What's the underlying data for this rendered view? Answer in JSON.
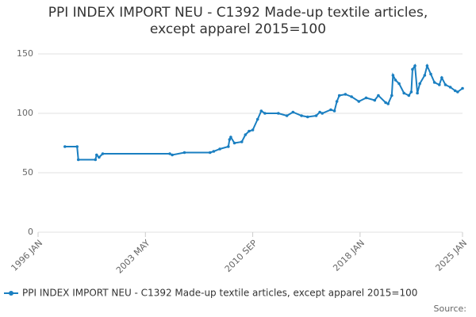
{
  "chart_data": {
    "type": "line",
    "title": "PPI INDEX IMPORT NEU - C1392 Made-up textile articles, except apparel 2015=100",
    "source": "Source:",
    "x": [
      "1997 NOV",
      "1998 SEP",
      "1998 OCT",
      "1999 DEC",
      "2000 JAN",
      "2000 MAR",
      "2000 JUN",
      "2005 JAN",
      "2005 MAR",
      "2006 JAN",
      "2007 OCT",
      "2008 JAN",
      "2008 JUN",
      "2009 JAN",
      "2009 FEB",
      "2009 MAR",
      "2009 JUN",
      "2009 DEC",
      "2010 MAR",
      "2010 JUN",
      "2010 SEP",
      "2011 JAN",
      "2011 APR",
      "2011 JUL",
      "2012 JUN",
      "2013 JAN",
      "2013 JUN",
      "2014 JAN",
      "2014 JUN",
      "2015 JAN",
      "2015 APR",
      "2015 JUN",
      "2016 JAN",
      "2016 APR",
      "2016 JUN",
      "2016 AUG",
      "2017 JAN",
      "2017 JUN",
      "2017 DEC",
      "2018 JUN",
      "2019 JAN",
      "2019 APR",
      "2019 OCT",
      "2019 DEC",
      "2020 MAR",
      "2020 APR",
      "2020 JUN",
      "2020 SEP",
      "2021 JAN",
      "2021 MAY",
      "2021 JUL",
      "2021 AUG",
      "2021 OCT",
      "2021 DEC",
      "2022 FEB",
      "2022 JUN",
      "2022 AUG",
      "2022 NOV",
      "2023 FEB",
      "2023 JUN",
      "2023 AUG",
      "2023 NOV",
      "2024 MAR",
      "2024 JUL",
      "2024 SEP",
      "2025 JAN"
    ],
    "series": [
      {
        "name": "PPI INDEX IMPORT NEU - C1392 Made-up textile articles, except apparel 2015=100",
        "color": "#1a7fc1",
        "values": [
          72,
          72,
          61,
          61,
          65,
          63,
          66,
          66,
          65,
          67,
          67,
          68,
          70,
          72,
          78,
          80,
          75,
          76,
          82,
          85,
          86,
          95,
          102,
          100,
          100,
          98,
          101,
          98,
          97,
          98,
          101,
          100,
          103,
          102,
          110,
          115,
          116,
          114,
          110,
          113,
          111,
          115,
          109,
          108,
          115,
          132,
          128,
          125,
          117,
          115,
          118,
          137,
          140,
          117,
          125,
          132,
          140,
          133,
          126,
          124,
          130,
          124,
          122,
          119,
          118,
          121
        ]
      }
    ],
    "xlim": [
      "1996 JAN",
      "2025 JAN"
    ],
    "xticks": [
      "1996 JAN",
      "2003 MAY",
      "2010 SEP",
      "2018 JAN",
      "2025 JAN"
    ],
    "ylim": [
      0,
      150
    ],
    "yticks": [
      0,
      50,
      100,
      150
    ],
    "grid": true
  }
}
